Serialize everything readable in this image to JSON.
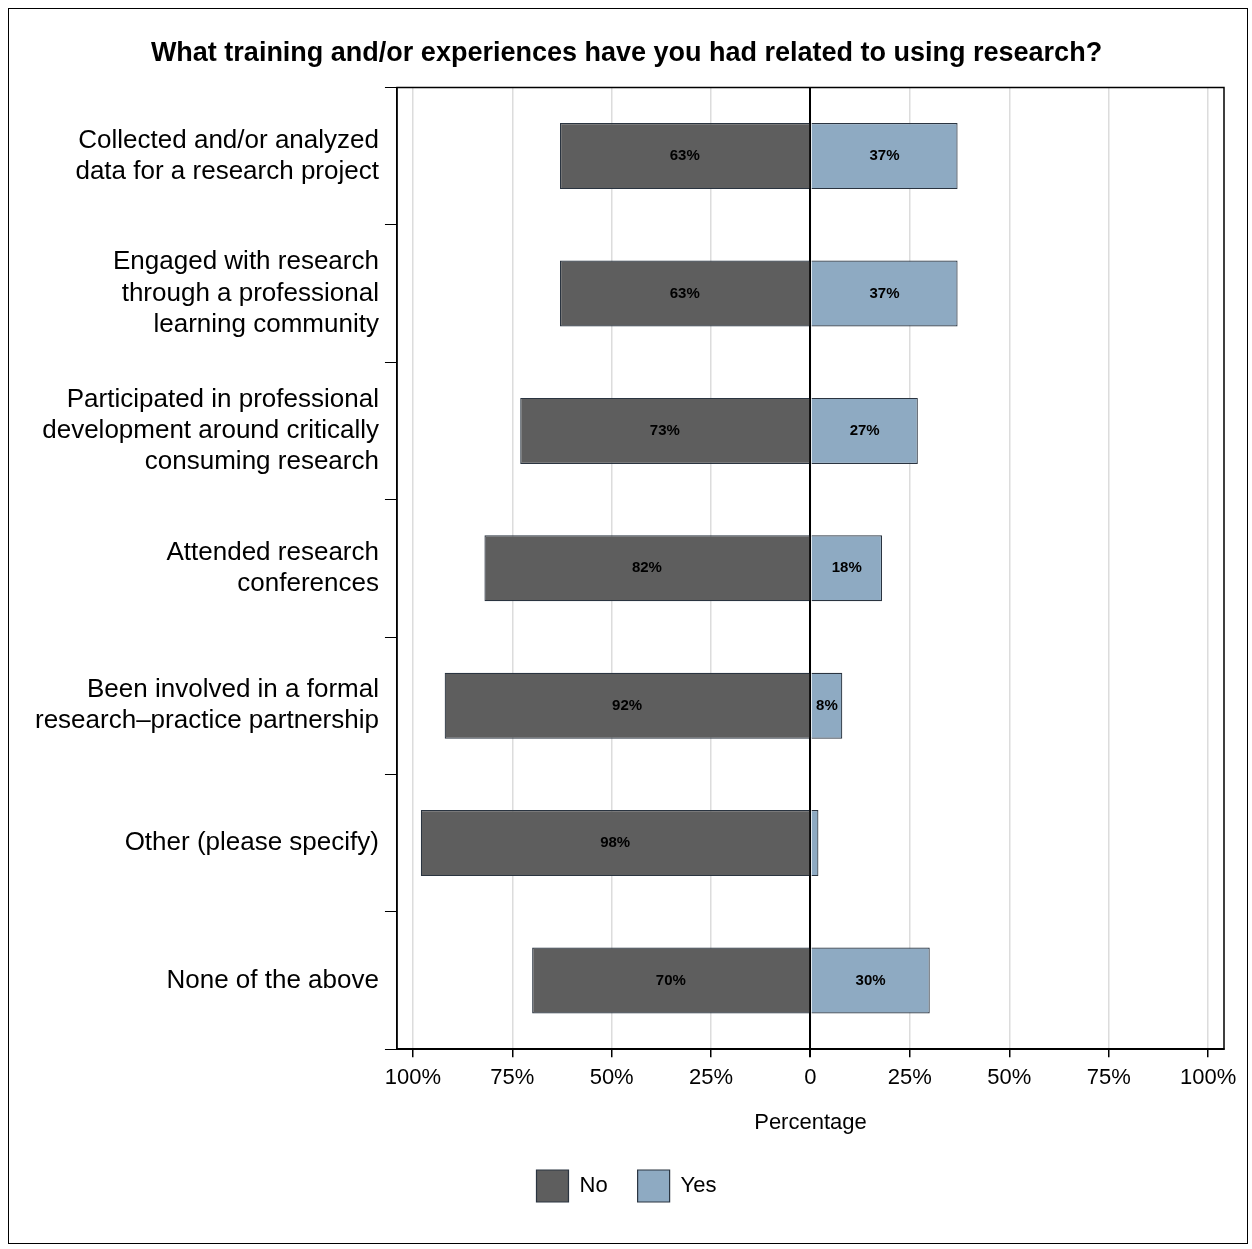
{
  "chart_data": {
    "type": "bar",
    "orientation": "horizontal",
    "title": "What training and/or experiences have you had related to using research?",
    "xlabel": "Percentage",
    "categories": [
      "Collected and/or analyzed data for a research project",
      "Engaged with research through a professional learning community",
      "Participated in professional development around critically consuming research",
      "Attended research conferences",
      "Been involved in a formal research–practice partnership",
      "Other (please specify)",
      "None of the above"
    ],
    "series": [
      {
        "name": "No",
        "color": "#5e5e5e",
        "values": [
          63,
          63,
          73,
          82,
          92,
          98,
          70
        ],
        "base": [
          -63,
          -63,
          -73,
          -82,
          -92,
          -98,
          -70
        ],
        "value_labels": [
          "63%",
          "63%",
          "73%",
          "82%",
          "92%",
          "98%",
          "70%"
        ]
      },
      {
        "name": "Yes",
        "color": "#8eaac2",
        "values": [
          37,
          37,
          27,
          18,
          8,
          2,
          30
        ],
        "base": [
          0,
          0,
          0,
          0,
          0,
          0,
          0
        ],
        "value_labels": [
          "37%",
          "37%",
          "27%",
          "18%",
          "8%",
          null,
          "30%"
        ]
      }
    ],
    "xlim": [
      -104,
      104
    ],
    "xticks": [
      {
        "value": -100,
        "label": "100%"
      },
      {
        "value": -75,
        "label": "75%"
      },
      {
        "value": -50,
        "label": "50%"
      },
      {
        "value": -25,
        "label": "25%"
      },
      0,
      {
        "value": 25,
        "label": "25%"
      },
      {
        "value": 50,
        "label": "50%"
      },
      {
        "value": 75,
        "label": "75%"
      },
      {
        "value": 100,
        "label": "100%"
      }
    ],
    "grid": "x",
    "legend": "bottom"
  }
}
